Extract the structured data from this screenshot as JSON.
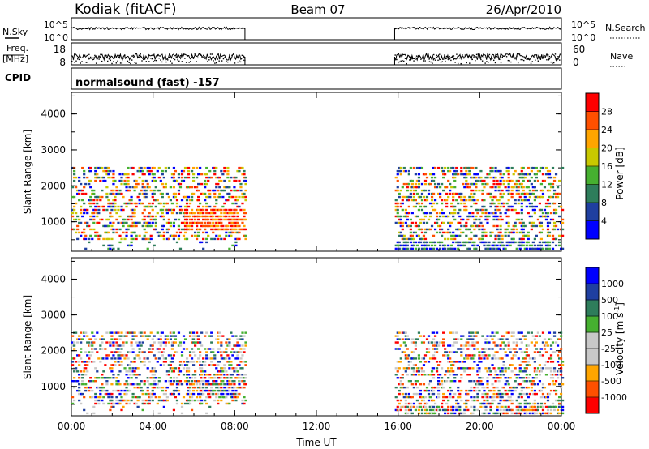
{
  "header": {
    "station": "Kodiak (fitACF)",
    "beam": "Beam 07",
    "date": "26/Apr/2010"
  },
  "panels": {
    "nsky": {
      "left_label": "N.Sky",
      "right_label": "N.Search",
      "left_ticks": [
        "10^5",
        "10^0"
      ],
      "right_ticks": [
        "10^5",
        "10^0"
      ]
    },
    "freq": {
      "left_label_top": "Freq.",
      "left_label_bottom": "[MHz]",
      "right_label": "Nave",
      "left_ticks": [
        "18",
        "8"
      ],
      "right_ticks": [
        "60",
        "0"
      ]
    },
    "cpid": {
      "label": "CPID",
      "text": "normalsound (fast) -157"
    }
  },
  "colors": {
    "power_scale": [
      "#0000ff",
      "#1f3fa0",
      "#2e7d5b",
      "#46b030",
      "#c8c800",
      "#ffa500",
      "#ff5000",
      "#ff0000"
    ],
    "velocity_scale": [
      "#ff0000",
      "#ff5000",
      "#ffa500",
      "#c8c8c8",
      "#c8c8c8",
      "#46b030",
      "#2e7d5b",
      "#1f3fa0",
      "#0000ff"
    ]
  },
  "chart_data": [
    {
      "type": "heatmap",
      "name": "power",
      "ylabel": "Slant Range [km]",
      "ylim": [
        180,
        4600
      ],
      "yticks": [
        "1000",
        "2000",
        "3000",
        "4000"
      ],
      "colorbar_label": "Power [dB]",
      "colorbar_ticks": [
        "4",
        "8",
        "12",
        "16",
        "20",
        "24",
        "28"
      ],
      "data_windows": [
        [
          "00:00",
          "08:30"
        ],
        [
          "15:50",
          "24:00"
        ]
      ]
    },
    {
      "type": "heatmap",
      "name": "velocity",
      "ylabel": "Slant Range [km]",
      "ylim": [
        180,
        4600
      ],
      "yticks": [
        "1000",
        "2000",
        "3000",
        "4000"
      ],
      "colorbar_label": "Velocity [m s",
      "colorbar_label_sup": "-1",
      "colorbar_label_end": "]",
      "colorbar_ticks": [
        "1000",
        "500",
        "100",
        "25",
        "-25",
        "-100",
        "-500",
        "-1000"
      ],
      "data_windows": [
        [
          "00:00",
          "08:30"
        ],
        [
          "15:50",
          "24:00"
        ]
      ]
    }
  ],
  "xaxis": {
    "label": "Time UT",
    "ticks": [
      "00:00",
      "04:00",
      "08:00",
      "12:00",
      "16:00",
      "20:00",
      "00:00"
    ]
  }
}
